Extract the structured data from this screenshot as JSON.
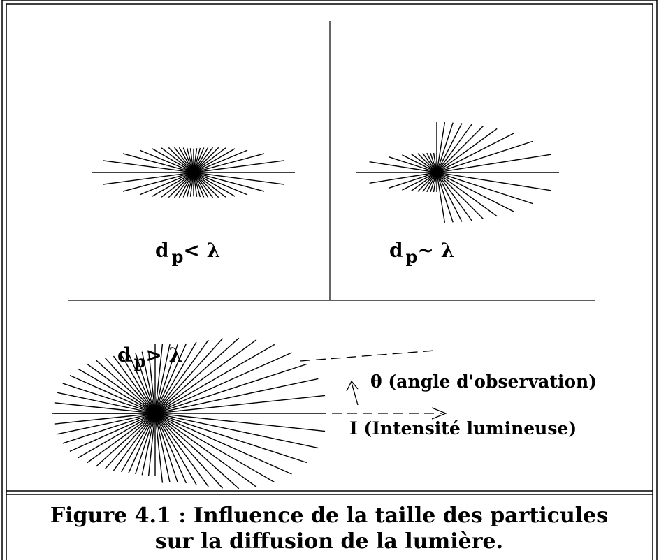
{
  "panels": [
    {
      "symbol": "d",
      "subscript": "p",
      "relation": "< λ"
    },
    {
      "symbol": "d",
      "subscript": "p",
      "relation": "~ λ"
    },
    {
      "symbol": "d",
      "subscript": "p",
      "relation": "> λ"
    }
  ],
  "annotations": {
    "angle": "θ (angle d'observation)",
    "intensity": "I (Intensité lumineuse)"
  },
  "caption": [
    "Figure 4.1 : Influence de la taille des particules",
    "sur la diffusion de la lumière."
  ]
}
